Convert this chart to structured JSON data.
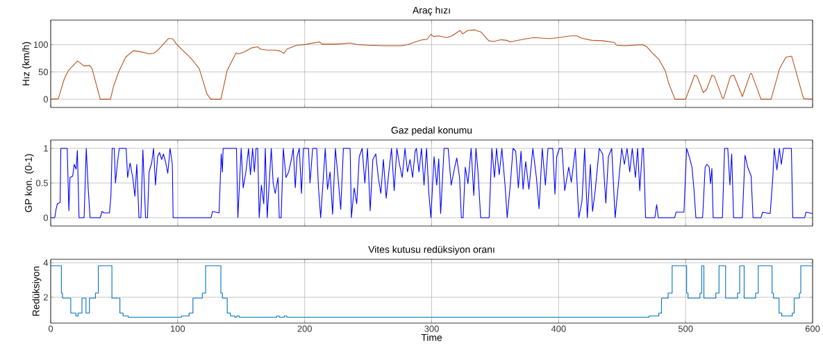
{
  "chart_data": [
    {
      "type": "line",
      "title": "Araç hızı",
      "ylabel": "Hız (km/h)",
      "color": "#b8501e",
      "xlim": [
        0,
        600
      ],
      "ylim": [
        -15,
        145
      ],
      "xticks": [
        0,
        100,
        200,
        300,
        400,
        500,
        600
      ],
      "yticks": [
        0,
        50,
        100
      ],
      "grid": true,
      "tick_labels": "y",
      "x": [
        0,
        6,
        10.5,
        14,
        17,
        21,
        23,
        26,
        30.5,
        32.6,
        39,
        47,
        49.5,
        53.7,
        59,
        65,
        70.5,
        75,
        77,
        81,
        84,
        92.6,
        96,
        99,
        110.5,
        114,
        117,
        123,
        126,
        134,
        139,
        146,
        148,
        152.6,
        158,
        163,
        165,
        170.5,
        177,
        181,
        183.6,
        186,
        193.7,
        200,
        204,
        211.6,
        213.7,
        225,
        236,
        242,
        250.5,
        263,
        275.8,
        281,
        289.5,
        293,
        296.5,
        299.4,
        301.5,
        305.6,
        311.9,
        316,
        322.3,
        324.4,
        328.5,
        333.8,
        339,
        345,
        349,
        354.7,
        358.9,
        362,
        372.4,
        380.8,
        393,
        400,
        409.4,
        414.6,
        418,
        426,
        435,
        444,
        445.5,
        451.7,
        466.4,
        469.5,
        473.7,
        479,
        484,
        486.6,
        491.6,
        500,
        504,
        507,
        509,
        514,
        516.5,
        520.7,
        522.7,
        529,
        530,
        535.3,
        538,
        544.7,
        551,
        552,
        559.4,
        567.3,
        574,
        579,
        583.5,
        592.9,
        600
      ],
      "values": [
        0,
        1,
        36,
        53,
        60,
        70,
        67,
        61,
        62,
        56,
        0,
        0,
        24,
        51,
        77,
        89,
        87,
        85,
        83,
        84,
        89,
        111,
        111,
        101,
        75,
        65,
        56,
        10,
        0,
        0,
        53,
        85,
        83,
        87,
        94,
        96,
        92,
        90,
        90,
        88,
        84,
        92,
        99,
        100,
        102,
        105,
        101,
        101,
        103,
        100,
        99,
        98,
        98,
        100,
        107,
        109,
        110,
        119,
        115,
        116,
        113,
        116,
        126,
        120,
        126,
        127,
        123,
        107,
        106,
        109,
        108,
        105,
        110,
        113,
        111,
        113,
        116,
        116,
        112,
        108,
        107,
        104,
        99,
        98,
        100,
        96,
        85,
        73,
        52,
        30,
        0,
        0,
        25,
        44,
        42,
        12,
        18,
        44,
        42,
        2,
        2,
        42,
        44,
        5,
        47,
        47,
        0,
        0,
        56,
        77,
        79,
        1,
        0
      ]
    },
    {
      "type": "line",
      "title": "Gaz pedal konumu",
      "ylabel": "GP kon. (0-1)",
      "color": "#0000ff",
      "xlim": [
        0,
        600
      ],
      "ylim": [
        -0.12,
        1.12
      ],
      "xticks": [
        0,
        100,
        200,
        300,
        400,
        500,
        600
      ],
      "yticks": [
        0,
        0.5,
        1
      ],
      "grid": true,
      "tick_labels": "y",
      "x": [
        0,
        3.2,
        4.2,
        5.3,
        7.4,
        8,
        13,
        14.3,
        15.2,
        17.3,
        18.5,
        20,
        21,
        22.3,
        26.3,
        28,
        29.5,
        31,
        39,
        40.4,
        42,
        46.3,
        47.4,
        48.4,
        50,
        51,
        52.6,
        54,
        59.4,
        60.6,
        62.5,
        64.6,
        66.3,
        67.8,
        69.5,
        71,
        72.6,
        74.7,
        76.2,
        77.5,
        79.6,
        81,
        82.5,
        84.2,
        85.7,
        87.4,
        88.8,
        90.5,
        92.2,
        94,
        95.8,
        96.4,
        126.3,
        127.4,
        132.6,
        134.3,
        135.2,
        135.8,
        146.3,
        147.4,
        150,
        151.6,
        153.7,
        155.8,
        157.3,
        159,
        160.4,
        161.7,
        163,
        164.2,
        165.9,
        167.8,
        169,
        170.5,
        172.2,
        173.7,
        175.2,
        176.8,
        179,
        180,
        181.5,
        183.2,
        185.3,
        187.4,
        189.5,
        191,
        192.6,
        194,
        195.8,
        197.5,
        199,
        201,
        203,
        204.2,
        206.3,
        209.5,
        210.9,
        212.6,
        214.7,
        216.2,
        218,
        220,
        222,
        224.2,
        226.3,
        228.4,
        230.5,
        235.8,
        236.8,
        239,
        241,
        243,
        245.3,
        247.4,
        249.5,
        251.6,
        253.7,
        256,
        258,
        260,
        262,
        264.2,
        266.3,
        268.4,
        270.5,
        272.6,
        274.7,
        276.8,
        279,
        281,
        283,
        285,
        287,
        288,
        290,
        292,
        294,
        296,
        297.7,
        299.4,
        301.9,
        304,
        305.6,
        307.1,
        309.8,
        313,
        315.4,
        318.2,
        319.8,
        322,
        323.4,
        324.8,
        326.5,
        328.6,
        331.1,
        333.2,
        334.9,
        336.5,
        338.6,
        345.3,
        347.4,
        349.5,
        351.1,
        353.2,
        355.3,
        357.8,
        359.5,
        362,
        364.1,
        366.2,
        368.3,
        370.4,
        372,
        374.1,
        376.6,
        379.7,
        382.5,
        384.6,
        387.1,
        389.6,
        391.6,
        395.4,
        397.1,
        398.5,
        400.6,
        402.7,
        404.8,
        408,
        410,
        413.2,
        415.9,
        418.4,
        420.5,
        422.6,
        425,
        426.7,
        428.8,
        432,
        434.7,
        437.2,
        439.2,
        441.8,
        444.5,
        447.2,
        449.7,
        451.8,
        453.9,
        456,
        458,
        460.5,
        462.2,
        463.9,
        466,
        466.8,
        468.5,
        475.8,
        477.2,
        478.5,
        491.4,
        492.5,
        498.7,
        500.8,
        502.9,
        505,
        506.5,
        508.1,
        513.4,
        515.4,
        516.9,
        518.6,
        519.6,
        520.7,
        521.7,
        529,
        530.7,
        533.2,
        534.9,
        536.3,
        537.8,
        544.7,
        546.8,
        548.9,
        551.6,
        553.1,
        559.3,
        560.7,
        566.6,
        568.7,
        569.8,
        571.9,
        573.9,
        575.4,
        577.1,
        583.3,
        584.4,
        593.8,
        594.8,
        600
      ],
      "values": [
        0,
        0,
        0.12,
        0.2,
        0.22,
        1,
        1,
        0.1,
        0.58,
        0.6,
        0.77,
        0.7,
        0.97,
        0,
        0,
        1,
        0.43,
        0,
        0,
        0.09,
        0.07,
        0.07,
        0.31,
        1,
        1,
        0.5,
        0.8,
        1,
        1,
        0.58,
        0.79,
        0.58,
        0.31,
        0.77,
        0,
        0,
        0.98,
        0,
        0,
        0.66,
        0.8,
        1,
        0.47,
        0.88,
        0.94,
        0.84,
        0.92,
        0.8,
        0.64,
        1,
        0.77,
        0,
        0,
        0.09,
        0.07,
        0.92,
        0.66,
        1,
        1,
        0,
        1,
        0.43,
        0.66,
        1,
        0.62,
        1,
        0.66,
        1,
        1,
        0,
        0.47,
        0.2,
        1,
        0,
        0.54,
        1,
        0.5,
        0.35,
        0.58,
        0,
        0,
        1,
        0.58,
        0.66,
        0.84,
        1,
        0.43,
        0.88,
        1,
        0.35,
        1,
        1,
        1,
        0.5,
        1,
        1,
        0.43,
        0,
        0.58,
        1,
        0.41,
        0.66,
        0.05,
        1,
        0.58,
        0.12,
        1,
        1,
        0,
        0.43,
        0.2,
        0.88,
        1,
        0.5,
        1,
        0.1,
        0.84,
        0.92,
        0.58,
        0.35,
        0.84,
        0.28,
        0.66,
        1,
        0.39,
        1,
        0.77,
        0.58,
        1,
        0.66,
        0.84,
        0.58,
        0.96,
        1,
        0.66,
        1,
        0.47,
        1,
        0.38,
        0,
        0.88,
        0.47,
        0.85,
        0.06,
        1,
        1,
        0.47,
        0.73,
        0.86,
        0.58,
        0,
        0,
        0.73,
        0.49,
        1,
        0.32,
        1,
        0.66,
        0,
        0,
        1,
        0.58,
        1,
        0.62,
        1,
        0.47,
        0,
        0.49,
        1,
        0.96,
        0.43,
        0.96,
        0.41,
        0.81,
        0.41,
        1,
        0.58,
        0.13,
        1,
        0.47,
        1,
        1,
        0.34,
        0.88,
        1,
        1,
        0.39,
        0.73,
        0.51,
        1,
        0,
        0.24,
        1,
        0,
        0.77,
        0.09,
        0.39,
        1,
        0.92,
        0.21,
        0.88,
        1,
        0,
        0.51,
        1,
        0.77,
        1,
        0.66,
        1,
        0.58,
        1,
        0.39,
        1,
        1,
        0,
        0,
        0.19,
        0,
        0,
        0.08,
        0.08,
        1,
        0.88,
        0.73,
        0.43,
        0,
        0,
        0.73,
        0.77,
        0.73,
        0.49,
        0.71,
        0,
        0,
        1,
        1,
        0.47,
        0.92,
        0,
        0,
        0.9,
        0.73,
        0.6,
        0,
        0,
        0.08,
        0.06,
        0.58,
        1,
        0.69,
        1,
        0.77,
        1,
        1,
        0,
        0,
        0.08,
        0.06
      ]
    },
    {
      "type": "step",
      "title": "Vites kutusu redüksiyon oranı",
      "ylabel": "Redüksiyon",
      "xlabel": "Time",
      "color": "#0072bd",
      "xlim": [
        0,
        600
      ],
      "ylim": [
        0.5,
        4.2
      ],
      "xticks": [
        0,
        100,
        200,
        300,
        400,
        500,
        600
      ],
      "yticks": [
        2,
        4
      ],
      "grid": true,
      "x": [
        0,
        8.4,
        9.3,
        15.8,
        19.8,
        21.5,
        24.6,
        27.8,
        30.5,
        35.2,
        37.5,
        48.2,
        54.5,
        57,
        61,
        103,
        109,
        112,
        119.4,
        122,
        134,
        135.2,
        139,
        141.5,
        145,
        146.5,
        148.5,
        178,
        180,
        184,
        186,
        471.2,
        478.9,
        481,
        486.2,
        489.4,
        500.8,
        501.9,
        511.3,
        512.7,
        514.4,
        523.8,
        526.3,
        531.5,
        540.9,
        542.6,
        546.1,
        555.1,
        557.2,
        568.1,
        569.2,
        573.6,
        575.7,
        584,
        585.5,
        589.6,
        590.7,
        600
      ],
      "values": [
        3.83,
        2.24,
        1.95,
        1.08,
        0.91,
        1.08,
        1.95,
        1.08,
        1.95,
        2.24,
        3.83,
        1.95,
        1.08,
        0.91,
        0.84,
        0.91,
        1.08,
        1.95,
        2.24,
        3.83,
        2.24,
        1.95,
        1.08,
        0.91,
        0.84,
        0.91,
        0.84,
        0.91,
        0.84,
        0.91,
        0.84,
        0.91,
        1.08,
        1.95,
        2.24,
        3.83,
        2.24,
        1.95,
        2.24,
        3.83,
        1.95,
        2.24,
        3.83,
        1.95,
        2.24,
        3.83,
        1.95,
        2.24,
        3.83,
        2.24,
        1.95,
        1.08,
        0.91,
        1.08,
        1.95,
        2.24,
        3.83,
        3.83
      ]
    }
  ]
}
